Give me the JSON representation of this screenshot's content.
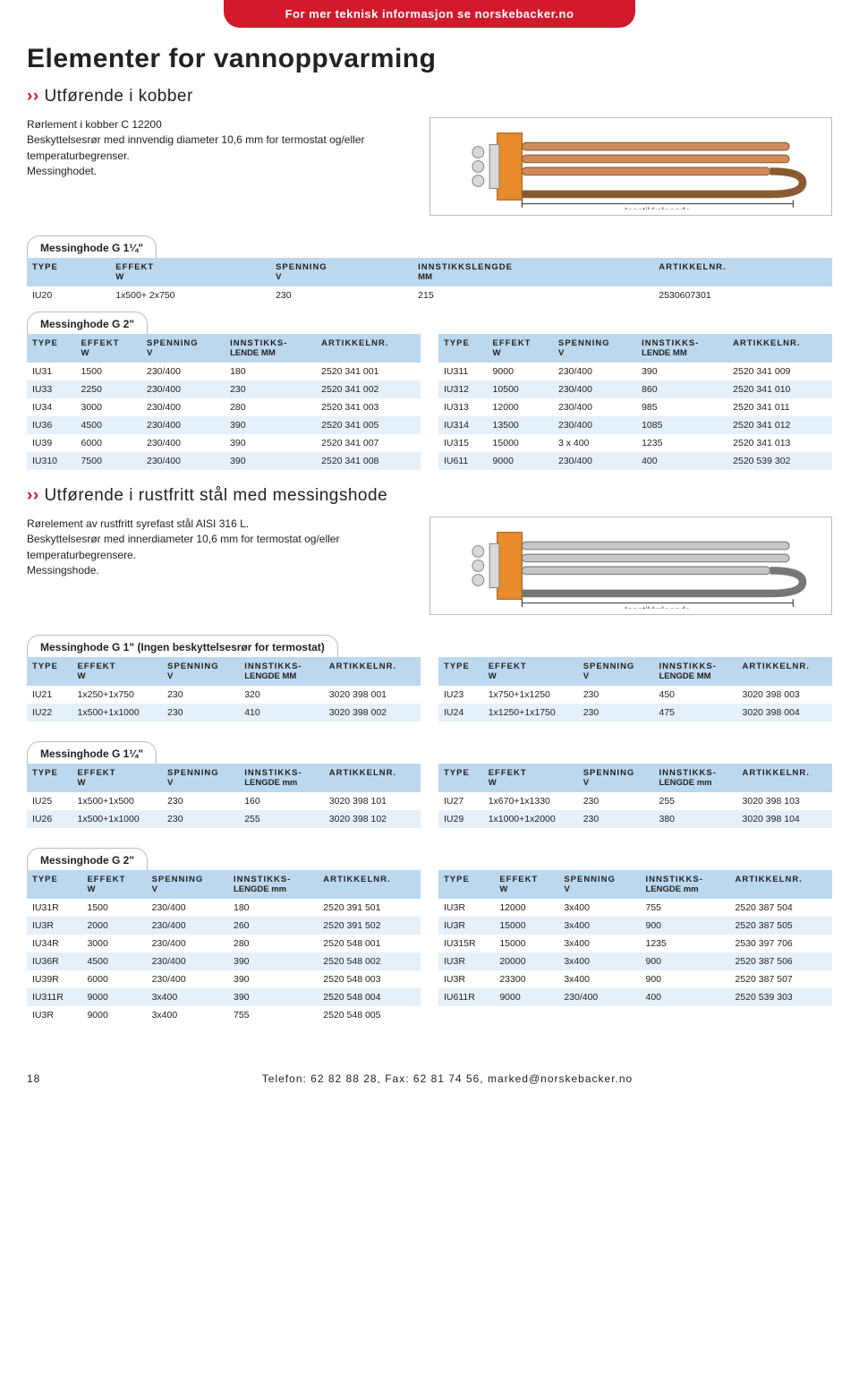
{
  "colors": {
    "accent_red": "#d21a2c",
    "header_blue": "#bcd8ef",
    "row_alt": "#e6f0f9",
    "flange_orange": "#e98a2c",
    "steel": "#c7c7c7"
  },
  "top_banner": "For mer teknisk informasjon se norskebacker.no",
  "page_title": "Elementer for vannoppvarming",
  "section1": {
    "subhead": "Utførende i kobber",
    "intro": "Rørlement i kobber C 12200\nBeskyttelsesrør med innvendig diameter 10,6 mm for termostat og/eller temperaturbegrenser.\nMessinghodet.",
    "diagram_label": "Innstikkslengde"
  },
  "col_labels": {
    "type": "TYPE",
    "effekt": "EFFEKT",
    "effekt_sub": "W",
    "spenning": "SPENNING",
    "spenning_sub": "V",
    "innstikk": "INNSTIKKSLENGDE",
    "innstikk_sub": "MM",
    "innstikk2": "INNSTIKKS-",
    "innstikk2_sub": "LENDE MM",
    "innstikk3": "INNSTIKKS-",
    "innstikk3_sub": "LENGDE MM",
    "innstikk4": "INNSTIKKS-",
    "innstikk4_sub": "LENGDE mm",
    "art": "ARTIKKELNR."
  },
  "tbl_g114_a": {
    "label": "Messinghode G 1¼\"",
    "rows": [
      [
        "IU20",
        "1x500+ 2x750",
        "230",
        "215",
        "2530607301"
      ]
    ]
  },
  "tbl_g2_a": {
    "label": "Messinghode G 2\"",
    "left": [
      [
        "IU31",
        "1500",
        "230/400",
        "180",
        "2520 341 001"
      ],
      [
        "IU33",
        "2250",
        "230/400",
        "230",
        "2520 341 002"
      ],
      [
        "IU34",
        "3000",
        "230/400",
        "280",
        "2520 341 003"
      ],
      [
        "IU36",
        "4500",
        "230/400",
        "390",
        "2520 341 005"
      ],
      [
        "IU39",
        "6000",
        "230/400",
        "390",
        "2520 341 007"
      ],
      [
        "IU310",
        "7500",
        "230/400",
        "390",
        "2520 341 008"
      ]
    ],
    "right": [
      [
        "IU311",
        "9000",
        "230/400",
        "390",
        "2520 341 009"
      ],
      [
        "IU312",
        "10500",
        "230/400",
        "860",
        "2520 341 010"
      ],
      [
        "IU313",
        "12000",
        "230/400",
        "985",
        "2520 341 011"
      ],
      [
        "IU314",
        "13500",
        "230/400",
        "1085",
        "2520 341 012"
      ],
      [
        "IU315",
        "15000",
        "3 x 400",
        "1235",
        "2520 341 013"
      ],
      [
        "IU611",
        "9000",
        "230/400",
        "400",
        "2520 539 302"
      ]
    ]
  },
  "section2": {
    "subhead": "Utførende i rustfritt stål med messingshode",
    "intro": "Rørelement av rustfritt syrefast stål AISI 316 L.\nBeskyttelsesrør med innerdiameter 10,6 mm for termostat og/eller temperaturbegrensere.\nMessingshode.",
    "diagram_label": "Innstikkslengde"
  },
  "tbl_g1_b": {
    "label": "Messinghode G 1\" (Ingen beskyttelsesrør for termostat)",
    "left": [
      [
        "IU21",
        "1x250+1x750",
        "230",
        "320",
        "3020 398 001"
      ],
      [
        "IU22",
        "1x500+1x1000",
        "230",
        "410",
        "3020 398 002"
      ]
    ],
    "right": [
      [
        "IU23",
        "1x750+1x1250",
        "230",
        "450",
        "3020 398 003"
      ],
      [
        "IU24",
        "1x1250+1x1750",
        "230",
        "475",
        "3020 398 004"
      ]
    ]
  },
  "tbl_g114_b": {
    "label": "Messinghode G 1¼\"",
    "left": [
      [
        "IU25",
        "1x500+1x500",
        "230",
        "160",
        "3020 398 101"
      ],
      [
        "IU26",
        "1x500+1x1000",
        "230",
        "255",
        "3020 398 102"
      ]
    ],
    "right": [
      [
        "IU27",
        "1x670+1x1330",
        "230",
        "255",
        "3020 398 103"
      ],
      [
        "IU29",
        "1x1000+1x2000",
        "230",
        "380",
        "3020 398 104"
      ]
    ]
  },
  "tbl_g2_b": {
    "label": "Messinghode G 2\"",
    "left": [
      [
        "IU31R",
        "1500",
        "230/400",
        "180",
        "2520 391 501"
      ],
      [
        "IU3R",
        "2000",
        "230/400",
        "260",
        "2520 391 502"
      ],
      [
        "IU34R",
        "3000",
        "230/400",
        "280",
        "2520 548 001"
      ],
      [
        "IU36R",
        "4500",
        "230/400",
        "390",
        "2520 548 002"
      ],
      [
        "IU39R",
        "6000",
        "230/400",
        "390",
        "2520 548 003"
      ],
      [
        "IU311R",
        "9000",
        "3x400",
        "390",
        "2520 548 004"
      ],
      [
        "IU3R",
        "9000",
        "3x400",
        "755",
        "2520 548 005"
      ]
    ],
    "right": [
      [
        "IU3R",
        "12000",
        "3x400",
        "755",
        "2520 387 504"
      ],
      [
        "IU3R",
        "15000",
        "3x400",
        "900",
        "2520 387 505"
      ],
      [
        "IU315R",
        "15000",
        "3x400",
        "1235",
        "2530 397 706"
      ],
      [
        "IU3R",
        "20000",
        "3x400",
        "900",
        "2520 387 506"
      ],
      [
        "IU3R",
        "23300",
        "3x400",
        "900",
        "2520 387 507"
      ],
      [
        "IU611R",
        "9000",
        "230/400",
        "400",
        "2520 539 303"
      ]
    ]
  },
  "footer": {
    "page_no": "18",
    "text": "Telefon: 62 82 88 28, Fax: 62 81 74 56, marked@norskebacker.no"
  }
}
